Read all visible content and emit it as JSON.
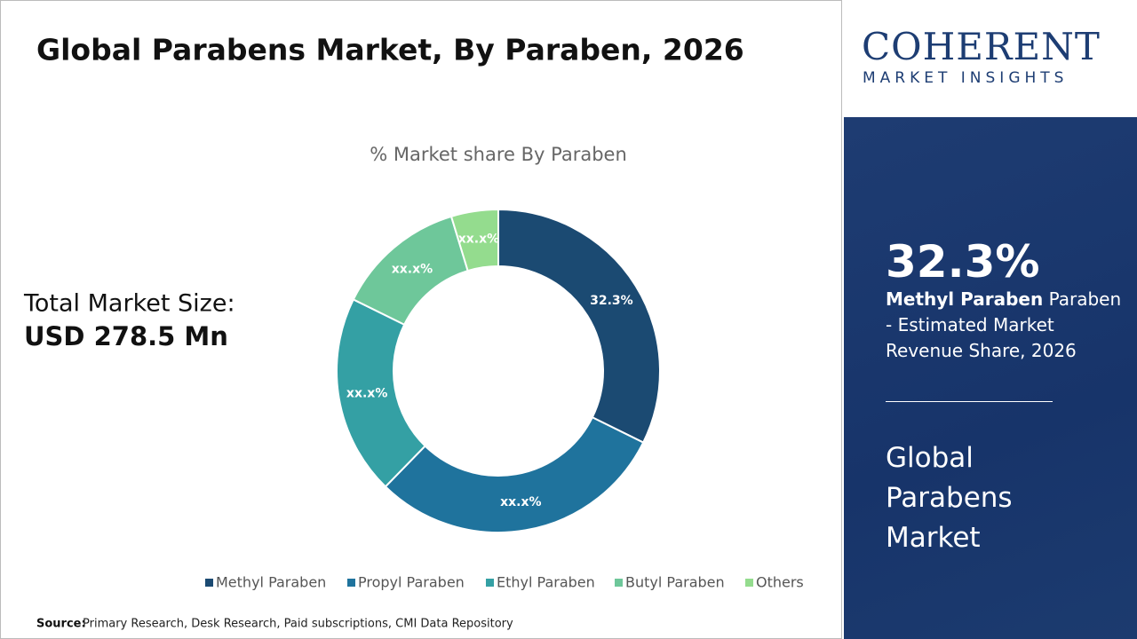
{
  "header": {
    "title": "Global Parabens Market, By Paraben, 2026"
  },
  "market_size": {
    "label": "Total Market Size:",
    "value": "USD 278.5 Mn"
  },
  "chart_data": {
    "type": "donut",
    "title": "% Market share By Paraben",
    "categories": [
      "Methyl Paraben",
      "Propyl Paraben",
      "Ethyl Paraben",
      "Butyl Paraben",
      "Others"
    ],
    "values": [
      32.3,
      30,
      20,
      13,
      4.7
    ],
    "value_labels": [
      "32.3%",
      "xx.x%",
      "xx.x%",
      "xx.x%",
      "xx.x%"
    ],
    "colors": [
      "#1b4a72",
      "#1f739d",
      "#34a0a4",
      "#6ec79a",
      "#94dc8e"
    ],
    "legend": "bottom"
  },
  "source": {
    "label": "Source:",
    "text": "Primary Research, Desk Research, Paid subscriptions, CMI Data Repository"
  },
  "logo": {
    "name": "COHERENT",
    "tagline": "MARKET INSIGHTS"
  },
  "side_panel": {
    "share": "32.3%",
    "highlight": "Methyl Paraben",
    "description": "Paraben - Estimated Market Revenue Share, 2026",
    "market": "Global Parabens Market"
  }
}
